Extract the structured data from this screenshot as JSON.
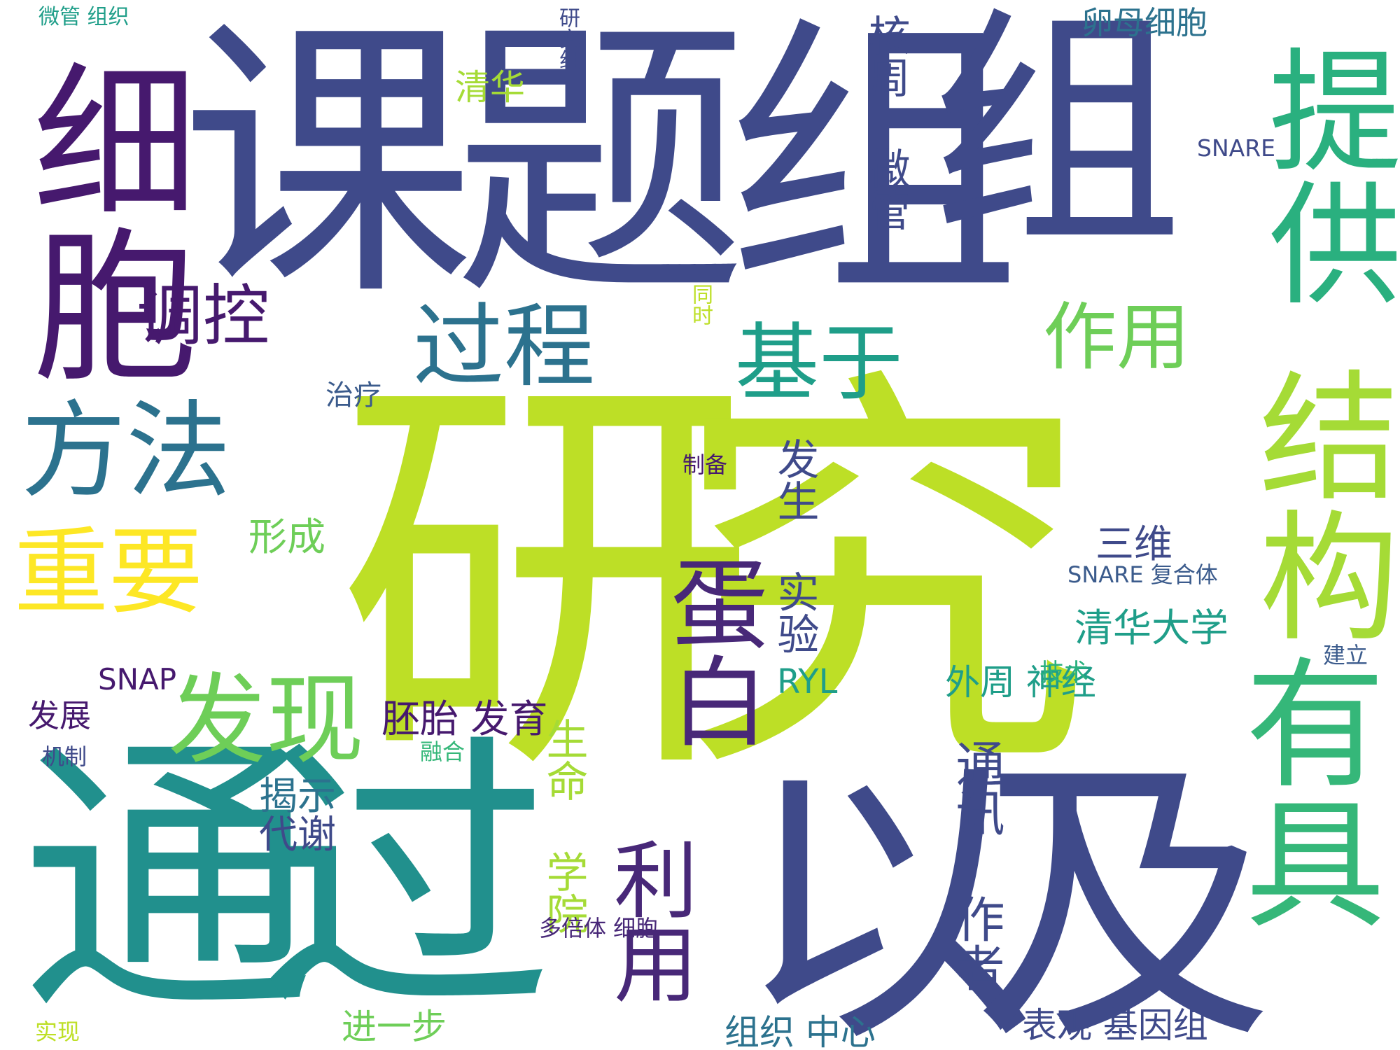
{
  "colors": {
    "background": "#ffffff",
    "dark_indigo": "#3f4a8a",
    "purple": "#46196e",
    "deep_purple": "#482878",
    "blue_grey": "#3b5b8c",
    "teal_blue": "#2c728e",
    "teal": "#21908d",
    "teal_green": "#1f9e89",
    "green": "#2ab07f",
    "mid_green": "#35b779",
    "light_green": "#6ece58",
    "lime": "#a5db36",
    "yellow_green": "#bddf26",
    "yellow": "#fde725"
  },
  "words": [
    {
      "text": "课题组",
      "color": "#3f4a8a"
    },
    {
      "text": "组",
      "color": "#3f4a8a"
    },
    {
      "text": "研究",
      "color": "#bddf26"
    },
    {
      "text": "通过",
      "color": "#21908d"
    },
    {
      "text": "以及",
      "color": "#3f4a8a"
    },
    {
      "text": "细胞",
      "color": "#46196e"
    },
    {
      "text": "提供",
      "color": "#2ab07f"
    },
    {
      "text": "结构",
      "color": "#a5db36"
    },
    {
      "text": "有具",
      "color": "#35b779"
    },
    {
      "text": "蛋白",
      "color": "#482878"
    },
    {
      "text": "利用",
      "color": "#482878"
    },
    {
      "text": "方法",
      "color": "#2c728e"
    },
    {
      "text": "重要",
      "color": "#fde725"
    },
    {
      "text": "发现",
      "color": "#6ece58"
    },
    {
      "text": "过程",
      "color": "#2c728e"
    },
    {
      "text": "基于",
      "color": "#1f9e89"
    },
    {
      "text": "作用",
      "color": "#6ece58"
    },
    {
      "text": "调控",
      "color": "#46196e"
    },
    {
      "text": "核周 微管",
      "color": "#3f4a8a"
    },
    {
      "text": "卵母细胞",
      "color": "#2c728e"
    },
    {
      "text": "SNARE",
      "color": "#3f4a8a"
    },
    {
      "text": "清华",
      "color": "#a5db36"
    },
    {
      "text": "研究组",
      "color": "#3f4a8a"
    },
    {
      "text": "微管 组织",
      "color": "#1f9e89"
    },
    {
      "text": "同时",
      "color": "#bddf26"
    },
    {
      "text": "治疗",
      "color": "#3b5b8c"
    },
    {
      "text": "制备",
      "color": "#46196e"
    },
    {
      "text": "发生 实验",
      "color": "#3f4a8a"
    },
    {
      "text": "形成",
      "color": "#6ece58"
    },
    {
      "text": "三维",
      "color": "#3f4a8a"
    },
    {
      "text": "SNARE 复合体",
      "color": "#3b5b8c"
    },
    {
      "text": "清华大学",
      "color": "#1f9e89"
    },
    {
      "text": "RYL",
      "color": "#1f9e89"
    },
    {
      "text": "SNAP",
      "color": "#46196e"
    },
    {
      "text": "外周 神经",
      "color": "#1f9e89"
    },
    {
      "text": "技术",
      "color": "#2ab07f"
    },
    {
      "text": "建立",
      "color": "#3b5b8c"
    },
    {
      "text": "发展",
      "color": "#46196e"
    },
    {
      "text": "胚胎 发育",
      "color": "#46196e"
    },
    {
      "text": "融合",
      "color": "#35b779"
    },
    {
      "text": "机制",
      "color": "#3f4a8a"
    },
    {
      "text": "揭示",
      "color": "#2c728e"
    },
    {
      "text": "代谢",
      "color": "#3f4a8a"
    },
    {
      "text": "生命 学院",
      "color": "#a5db36"
    },
    {
      "text": "通讯 作者",
      "color": "#3f4a8a"
    },
    {
      "text": "多倍体 细胞",
      "color": "#482878"
    },
    {
      "text": "组织 中心",
      "color": "#2c728e"
    },
    {
      "text": "实现",
      "color": "#bddf26"
    },
    {
      "text": "进一步",
      "color": "#6ece58"
    },
    {
      "text": "表观 基因组",
      "color": "#3f4a8a"
    }
  ]
}
